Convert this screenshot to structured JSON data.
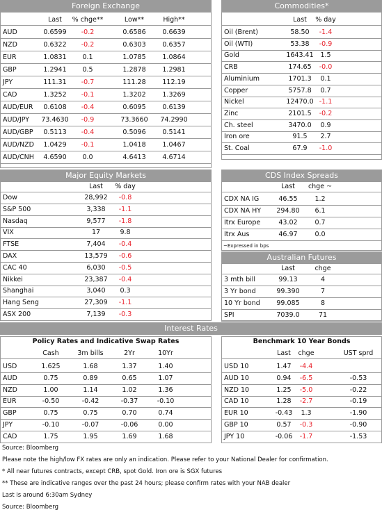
{
  "fx": {
    "title": "Foreign Exchange",
    "headers": [
      "Last",
      "% chge**",
      "Low**",
      "High**"
    ],
    "rows": [
      [
        "AUD",
        "0.6599",
        "-0.2",
        "0.6586",
        "0.6639"
      ],
      [
        "NZD",
        "0.6322",
        "-0.2",
        "0.6303",
        "0.6357"
      ],
      [
        "EUR",
        "1.0831",
        "0.1",
        "1.0785",
        "1.0864"
      ],
      [
        "GBP",
        "1.2941",
        "0.5",
        "1.2878",
        "1.2981"
      ],
      [
        "JPY",
        "111.31",
        "-0.7",
        "111.28",
        "112.19"
      ],
      [
        "CAD",
        "1.3252",
        "-0.1",
        "1.3202",
        "1.3269"
      ],
      [
        "AUD/EUR",
        "0.6108",
        "-0.4",
        "0.6095",
        "0.6139"
      ],
      [
        "AUD/JPY",
        "73.4630",
        "-0.9",
        "73.3660",
        "74.2990"
      ],
      [
        "AUD/GBP",
        "0.5113",
        "-0.4",
        "0.5096",
        "0.5141"
      ],
      [
        "AUD/NZD",
        "1.0429",
        "-0.1",
        "1.0418",
        "1.0467"
      ],
      [
        "AUD/CNH",
        "4.6590",
        "0.0",
        "4.6413",
        "4.6714"
      ]
    ]
  },
  "commodities": {
    "title": "Commodities*",
    "headers": [
      "Last",
      "% day"
    ],
    "rows": [
      [
        "Oil (Brent)",
        "58.50",
        "-1.4"
      ],
      [
        "Oil (WTI)",
        "53.38",
        "-0.9"
      ],
      [
        "Gold",
        "1643.41",
        "1.5"
      ],
      [
        "CRB",
        "174.65",
        "-0.0"
      ],
      [
        "Aluminium",
        "1701.3",
        "0.1"
      ],
      [
        "Copper",
        "5757.8",
        "0.7"
      ],
      [
        "Nickel",
        "12470.0",
        "-1.1"
      ],
      [
        "Zinc",
        "2101.5",
        "-0.2"
      ],
      [
        "Ch. steel",
        "3470.0",
        "0.9"
      ],
      [
        "Iron ore",
        "91.5",
        "2.7"
      ],
      [
        "St. Coal",
        "67.9",
        "-1.0"
      ]
    ]
  },
  "equity": {
    "title": "Major Equity Markets",
    "headers": [
      "Last",
      "% day"
    ],
    "rows": [
      [
        "Dow",
        "28,992",
        "-0.8"
      ],
      [
        "S&P 500",
        "3,338",
        "-1.1"
      ],
      [
        "Nasdaq",
        "9,577",
        "-1.8"
      ],
      [
        "VIX",
        "17",
        "9.8"
      ],
      [
        "FTSE",
        "7,404",
        "-0.4"
      ],
      [
        "DAX",
        "13,579",
        "-0.6"
      ],
      [
        "CAC 40",
        "6,030",
        "-0.5"
      ],
      [
        "Nikkei",
        "23,387",
        "-0.4"
      ],
      [
        "Shanghai",
        "3,040",
        "0.3"
      ],
      [
        "Hang Seng",
        "27,309",
        "-1.1"
      ],
      [
        "ASX 200",
        "7,139",
        "-0.3"
      ]
    ]
  },
  "cds": {
    "title": "CDS Index Spreads",
    "headers": [
      "Last",
      "chge ~"
    ],
    "rows": [
      [
        "CDX NA IG",
        "46.55",
        "1.2"
      ],
      [
        "CDX NA HY",
        "294.80",
        "6.1"
      ],
      [
        "Itrx Europe",
        "43.02",
        "0.7"
      ],
      [
        "Itrx Aus",
        "46.97",
        "0.0"
      ]
    ],
    "note": "~Expressed in bps"
  },
  "futures": {
    "title": "Australian Futures",
    "headers": [
      "Last",
      "chge"
    ],
    "rows": [
      [
        "3 mth bill",
        "99.13",
        "4"
      ],
      [
        "3 Yr bond",
        "99.390",
        "7"
      ],
      [
        "10 Yr bond",
        "99.085",
        "8"
      ],
      [
        "SPI",
        "7039.0",
        "71"
      ]
    ]
  },
  "interest_rates": {
    "title": "Interest Rates",
    "policy": {
      "title": "Policy Rates and Indicative Swap Rates",
      "headers": [
        "Cash",
        "3m bills",
        "2Yr",
        "10Yr"
      ],
      "rows": [
        [
          "USD",
          "1.625",
          "1.68",
          "1.37",
          "1.40"
        ],
        [
          "AUD",
          "0.75",
          "0.89",
          "0.65",
          "1.07"
        ],
        [
          "NZD",
          "1.00",
          "1.14",
          "1.02",
          "1.36"
        ],
        [
          "EUR",
          "-0.50",
          "-0.42",
          "-0.37",
          "-0.10"
        ],
        [
          "GBP",
          "0.75",
          "0.75",
          "0.70",
          "0.74"
        ],
        [
          "JPY",
          "-0.10",
          "-0.07",
          "-0.06",
          "0.00"
        ],
        [
          "CAD",
          "1.75",
          "1.95",
          "1.69",
          "1.68"
        ]
      ]
    },
    "bonds": {
      "title": "Benchmark 10 Year Bonds",
      "headers": [
        "Last",
        "chge",
        "UST sprd"
      ],
      "rows": [
        [
          "USD 10",
          "1.47",
          "-4.4",
          null
        ],
        [
          "AUD 10",
          "0.94",
          "-6.5",
          "-0.53"
        ],
        [
          "NZD 10",
          "1.25",
          "-5.0",
          "-0.22"
        ],
        [
          "CAD 10",
          "1.28",
          "-2.7",
          "-0.19"
        ],
        [
          "EUR 10",
          "-0.43",
          "1.3",
          "-1.90"
        ],
        [
          "GBP 10",
          "0.57",
          "-0.3",
          "-0.90"
        ],
        [
          "JPY 10",
          "-0.06",
          "-1.7",
          "-1.53"
        ]
      ]
    }
  },
  "footnotes": [
    "Source: Bloomberg",
    "Please note the high/low FX rates are only an indication. Please refer to your National Dealer for confirmation.",
    "* All near futures contracts, except CRB, spot Gold.  Iron ore is SGX futures",
    "** These are indicative ranges over the past 24 hours; please confirm rates with your NAB dealer",
    "Last is around 6:30am Sydney",
    "Source: Bloomberg"
  ]
}
